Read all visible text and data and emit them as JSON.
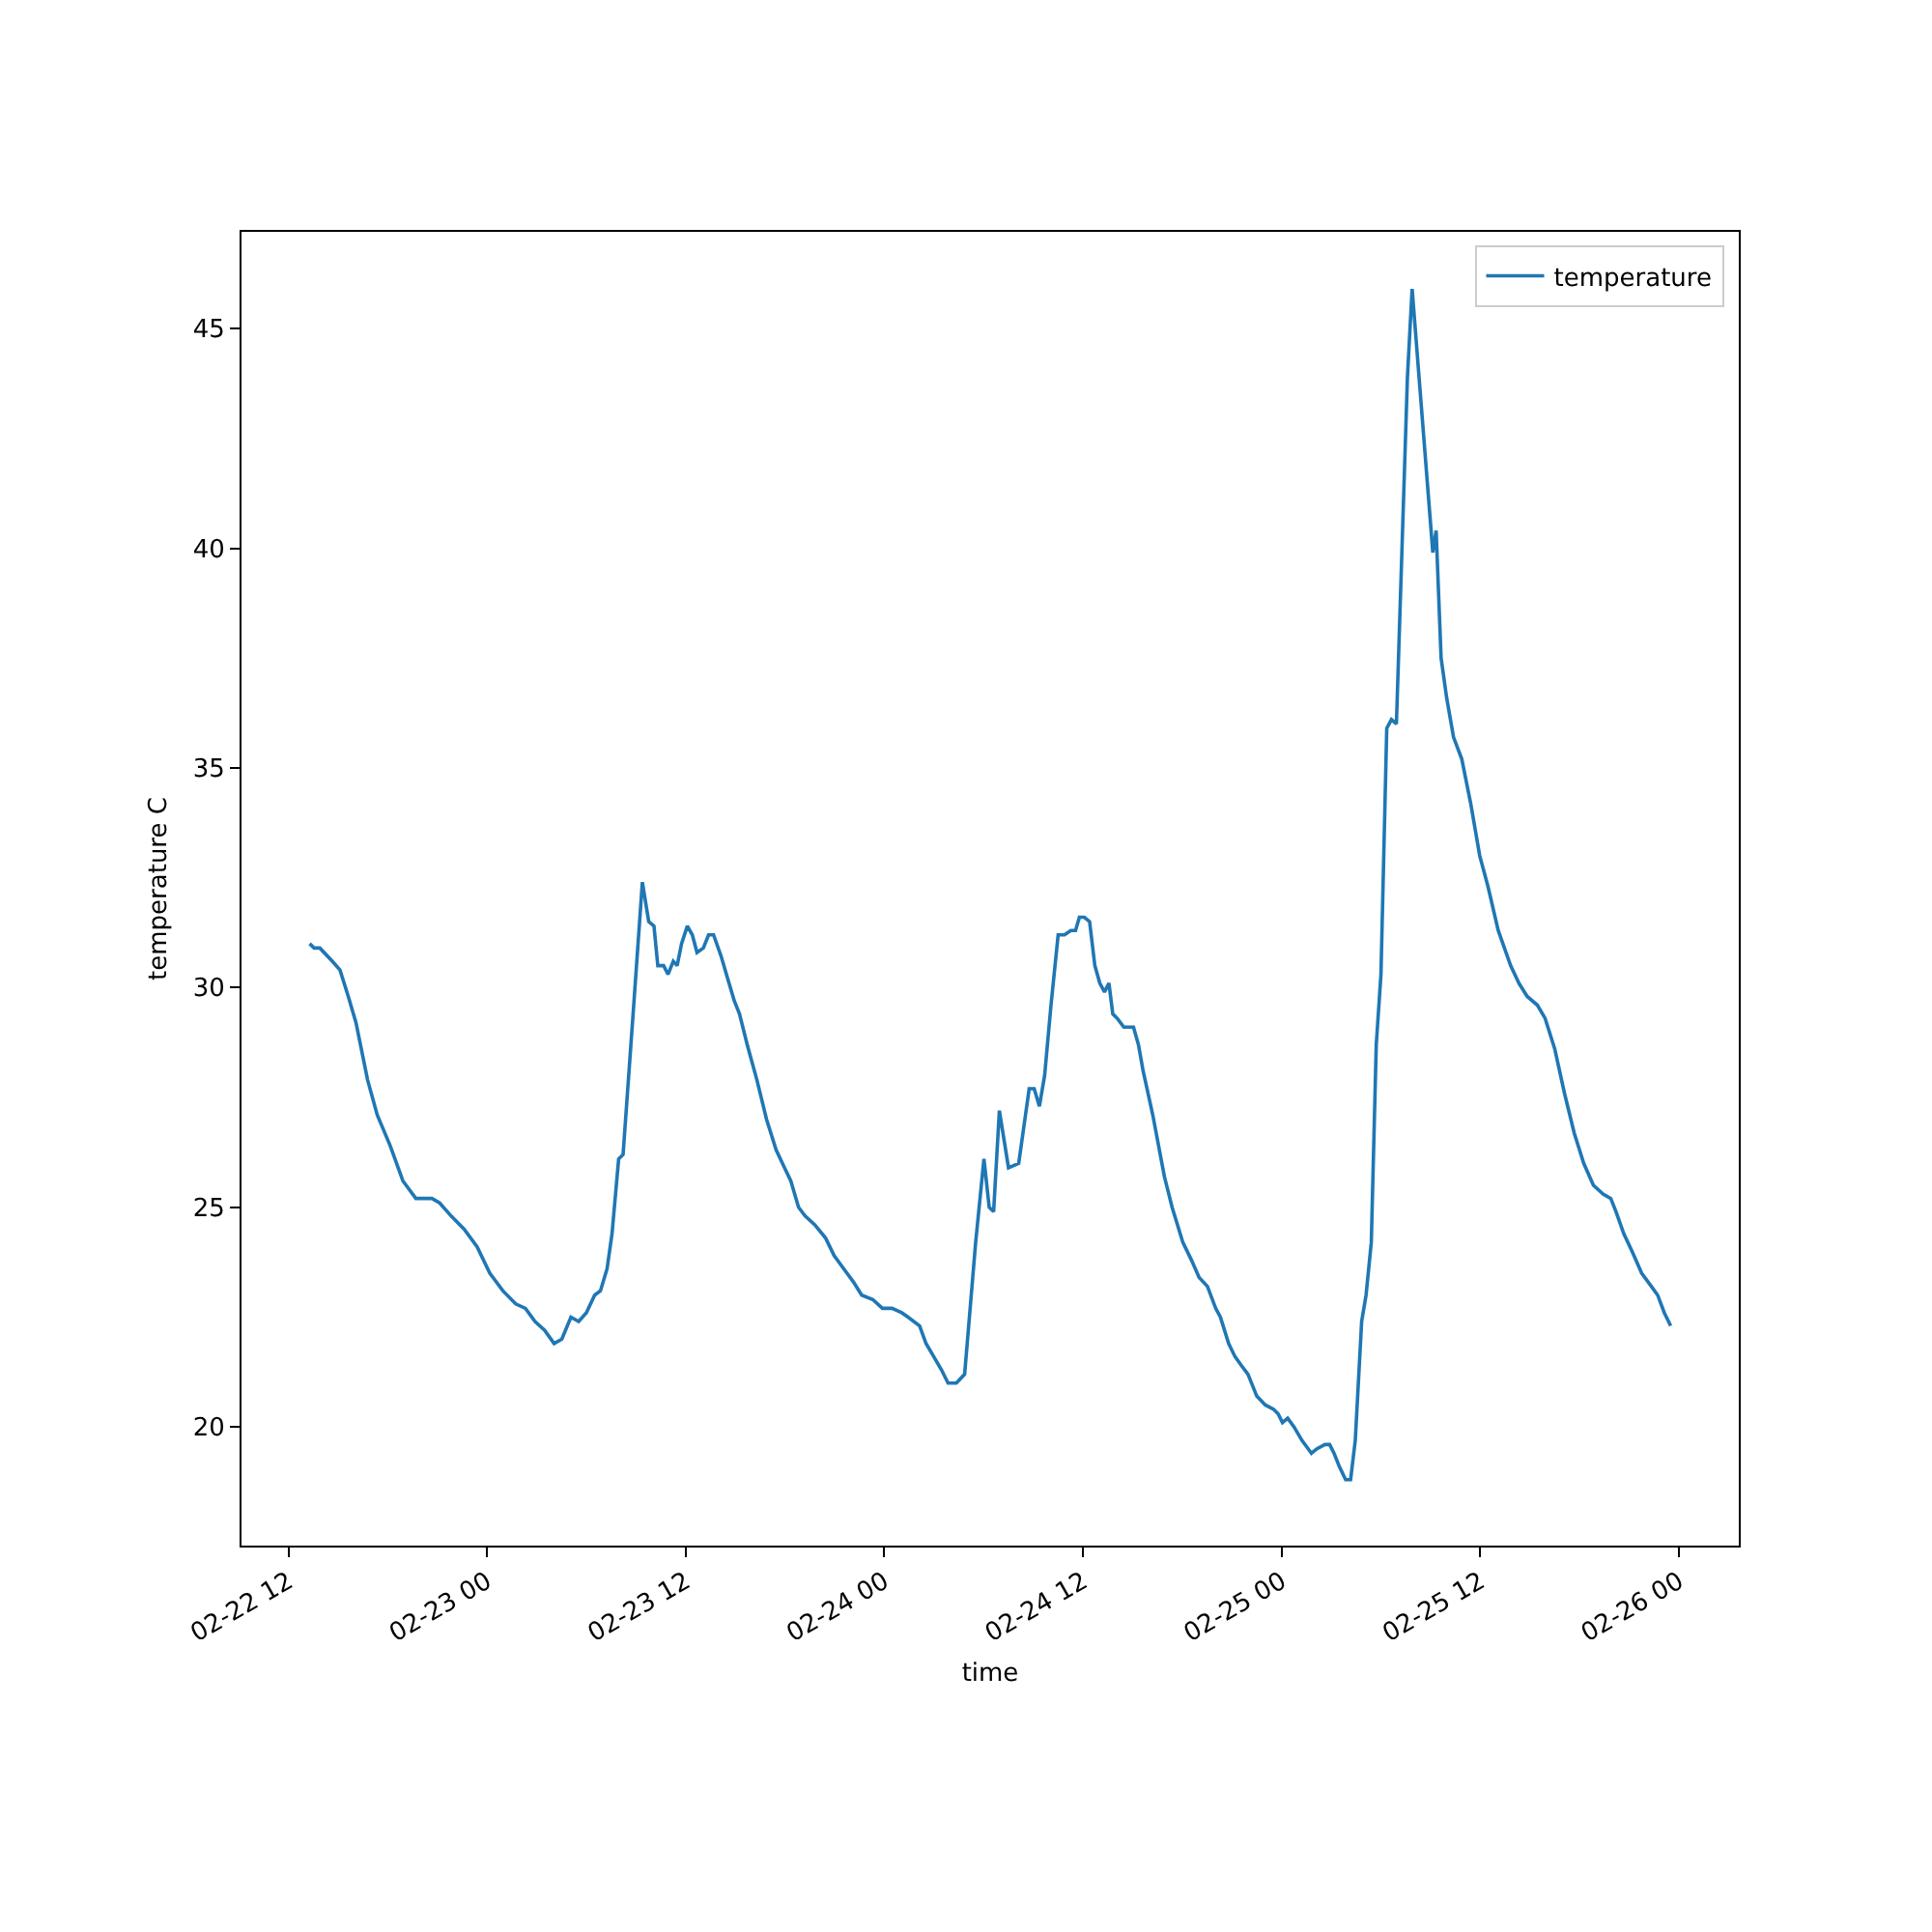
{
  "chart_data": {
    "type": "line",
    "xlabel": "time",
    "ylabel": "temperature C",
    "legend": "top right",
    "x": [
      "--02-22T13:17",
      "--02-22T13:33",
      "--02-22T13:54",
      "--02-22T14:39",
      "--02-22T15:07",
      "--02-22T15:37",
      "--02-22T16:05",
      "--02-22T16:47",
      "--02-22T17:22",
      "--02-22T18:09",
      "--02-22T18:55",
      "--02-22T19:42",
      "--02-22T20:40",
      "--02-22T21:08",
      "--02-22T21:50",
      "--02-22T22:37",
      "--02-22T23:24",
      "--02-23T00:10",
      "--02-23T00:57",
      "--02-23T01:44",
      "--02-23T02:19",
      "--02-23T02:54",
      "--02-23T03:29",
      "--02-23T04:03",
      "--02-23T04:31",
      "--02-23T05:04",
      "--02-23T05:32",
      "--02-23T06:00",
      "--02-23T06:30",
      "--02-23T06:51",
      "--02-23T07:15",
      "--02-23T07:33",
      "--02-23T07:57",
      "--02-23T08:13",
      "--02-23T08:55",
      "--02-23T09:23",
      "--02-23T09:46",
      "--02-23T10:05",
      "--02-23T10:19",
      "--02-23T10:40",
      "--02-23T10:56",
      "--02-23T11:15",
      "--02-23T11:29",
      "--02-23T11:45",
      "--02-23T12:06",
      "--02-23T12:24",
      "--02-23T12:41",
      "--02-23T13:04",
      "--02-23T13:23",
      "--02-23T13:41",
      "--02-23T14:09",
      "--02-23T14:37",
      "--02-23T14:56",
      "--02-23T15:15",
      "--02-23T15:43",
      "--02-23T16:18",
      "--02-23T16:53",
      "--02-23T17:28",
      "--02-23T17:58",
      "--02-23T18:21",
      "--02-23T18:49",
      "--02-23T19:13",
      "--02-23T19:48",
      "--02-23T20:27",
      "--02-23T20:58",
      "--02-23T21:33",
      "--02-23T22:08",
      "--02-23T22:38",
      "--02-23T23:18",
      "--02-23T23:53",
      "--02-24T00:28",
      "--02-24T01:03",
      "--02-24T01:26",
      "--02-24T02:08",
      "--02-24T02:31",
      "--02-24T02:59",
      "--02-24T03:27",
      "--02-24T03:51",
      "--02-24T04:21",
      "--02-24T04:51",
      "--02-24T05:31",
      "--02-24T06:01",
      "--02-24T06:20",
      "--02-24T06:36",
      "--02-24T06:57",
      "--02-24T07:30",
      "--02-24T08:07",
      "--02-24T08:45",
      "--02-24T09:03",
      "--02-24T09:22",
      "--02-24T09:41",
      "--02-24T10:04",
      "--02-24T10:30",
      "--02-24T10:53",
      "--02-24T11:16",
      "--02-24T11:33",
      "--02-24T11:47",
      "--02-24T12:05",
      "--02-24T12:24",
      "--02-24T12:43",
      "--02-24T13:01",
      "--02-24T13:18",
      "--02-24T13:34",
      "--02-24T13:48",
      "--02-24T14:04",
      "--02-24T14:28",
      "--02-24T15:03",
      "--02-24T15:21",
      "--02-24T15:38",
      "--02-24T16:13",
      "--02-24T16:55",
      "--02-24T17:23",
      "--02-24T18:02",
      "--02-24T18:33",
      "--02-24T19:01",
      "--02-24T19:31",
      "--02-24T20:01",
      "--02-24T20:18",
      "--02-24T20:48",
      "--02-24T21:11",
      "--02-24T21:34",
      "--02-24T21:58",
      "--02-24T22:30",
      "--02-24T23:01",
      "--02-24T23:31",
      "--02-24T23:47",
      "--02-25T00:03",
      "--02-25T00:22",
      "--02-25T00:45",
      "--02-25T01:13",
      "--02-25T01:48",
      "--02-25T02:07",
      "--02-25T02:37",
      "--02-25T02:54",
      "--02-25T03:10",
      "--02-25T03:29",
      "--02-25T03:52",
      "--02-25T04:10",
      "--02-25T04:27",
      "--02-25T04:50",
      "--02-25T05:06",
      "--02-25T05:25",
      "--02-25T05:43",
      "--02-25T06:00",
      "--02-25T06:21",
      "--02-25T06:38",
      "--02-25T06:56",
      "--02-25T07:36",
      "--02-25T07:53",
      "--02-25T08:23",
      "--02-25T09:08",
      "--02-25T09:20",
      "--02-25T09:38",
      "--02-25T09:58",
      "--02-25T10:23",
      "--02-25T10:53",
      "--02-25T11:25",
      "--02-25T11:58",
      "--02-25T12:28",
      "--02-25T13:05",
      "--02-25T13:50",
      "--02-25T14:20",
      "--02-25T14:50",
      "--02-25T15:27",
      "--02-25T15:55",
      "--02-25T16:30",
      "--02-25T17:05",
      "--02-25T17:40",
      "--02-25T18:15",
      "--02-25T18:50",
      "--02-25T19:25",
      "--02-25T19:53",
      "--02-25T20:12",
      "--02-25T20:40",
      "--02-25T21:10",
      "--02-25T21:45",
      "--02-25T22:20",
      "--02-25T22:43",
      "--02-25T23:07",
      "--02-25T23:30"
    ],
    "series": [
      {
        "name": "temperature",
        "color": "#1f77b4",
        "values": [
          31.0,
          30.9,
          30.9,
          30.6,
          30.4,
          29.8,
          29.2,
          27.9,
          27.1,
          26.4,
          25.6,
          25.2,
          25.2,
          25.1,
          24.8,
          24.5,
          24.1,
          23.5,
          23.1,
          22.8,
          22.7,
          22.4,
          22.2,
          21.9,
          22.0,
          22.5,
          22.4,
          22.6,
          23.0,
          23.1,
          23.6,
          24.4,
          26.1,
          26.2,
          29.9,
          32.4,
          31.5,
          31.4,
          30.5,
          30.5,
          30.3,
          30.6,
          30.5,
          31.0,
          31.4,
          31.2,
          30.8,
          30.9,
          31.2,
          31.2,
          30.7,
          30.1,
          29.7,
          29.4,
          28.7,
          27.9,
          27.0,
          26.3,
          25.9,
          25.6,
          25.0,
          24.8,
          24.6,
          24.3,
          23.9,
          23.6,
          23.3,
          23.0,
          22.9,
          22.7,
          22.7,
          22.6,
          22.5,
          22.3,
          21.9,
          21.6,
          21.3,
          21.0,
          21.0,
          21.2,
          24.2,
          26.1,
          25.0,
          24.9,
          27.2,
          25.9,
          26.0,
          27.7,
          27.7,
          27.3,
          28.0,
          29.6,
          31.2,
          31.2,
          31.3,
          31.3,
          31.6,
          31.6,
          31.5,
          30.5,
          30.1,
          29.9,
          30.1,
          29.4,
          29.3,
          29.1,
          29.1,
          28.7,
          28.1,
          27.1,
          25.7,
          25.0,
          24.2,
          23.8,
          23.4,
          23.2,
          22.7,
          22.5,
          21.9,
          21.6,
          21.4,
          21.2,
          20.7,
          20.5,
          20.4,
          20.3,
          20.1,
          20.2,
          20.0,
          19.7,
          19.4,
          19.5,
          19.6,
          19.6,
          19.4,
          19.1,
          18.8,
          18.8,
          19.7,
          22.4,
          23.0,
          24.2,
          28.7,
          30.3,
          35.9,
          36.1,
          36.0,
          43.9,
          45.9,
          43.5,
          39.9,
          40.4,
          37.5,
          36.6,
          35.7,
          35.2,
          34.2,
          33.0,
          32.3,
          31.3,
          30.5,
          30.1,
          29.8,
          29.6,
          29.3,
          28.6,
          27.6,
          26.7,
          26.0,
          25.5,
          25.3,
          25.2,
          24.9,
          24.4,
          24.0,
          23.5,
          23.2,
          23.0,
          22.6,
          22.3
        ]
      }
    ],
    "xlim": [
      "--02-22T09:10",
      "--02-26T03:37"
    ],
    "xticks": [
      {
        "value": "--02-22T12:00",
        "label": "02-22 12"
      },
      {
        "value": "--02-23T00:00",
        "label": "02-23 00"
      },
      {
        "value": "--02-23T12:00",
        "label": "02-23 12"
      },
      {
        "value": "--02-24T00:00",
        "label": "02-24 00"
      },
      {
        "value": "--02-24T12:00",
        "label": "02-24 12"
      },
      {
        "value": "--02-25T00:00",
        "label": "02-25 00"
      },
      {
        "value": "--02-25T12:00",
        "label": "02-25 12"
      },
      {
        "value": "--02-26T00:00",
        "label": "02-26 00"
      }
    ],
    "ylim": [
      17.3,
      47.2
    ],
    "yticks": [
      20,
      25,
      30,
      35,
      40,
      45
    ]
  }
}
